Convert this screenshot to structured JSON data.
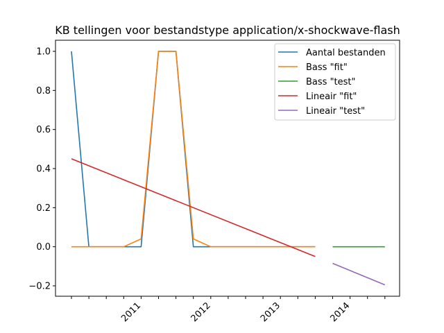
{
  "chart_data": {
    "type": "line",
    "title": "KB tellingen voor bestandstype application/x-shockwave-flash",
    "xlabel": "",
    "ylabel": "",
    "x_period_labels": [
      "",
      "",
      "",
      "",
      "2011",
      "",
      "",
      "",
      "2012",
      "",
      "",
      "",
      "2013",
      "",
      "",
      "",
      "2014",
      "",
      ""
    ],
    "ylim": [
      -0.25,
      1.05
    ],
    "yticks": [
      -0.2,
      0.0,
      0.2,
      0.4,
      0.6,
      0.8,
      1.0
    ],
    "ytick_labels": [
      "−0.2",
      "0.0",
      "0.2",
      "0.4",
      "0.6",
      "0.8",
      "1.0"
    ],
    "grid": false,
    "legend_position": "top-right",
    "series": [
      {
        "name": "Aantal bestanden",
        "color": "#1f77b4",
        "x": [
          0,
          1,
          2,
          3,
          4,
          5,
          6,
          7,
          8,
          9,
          10,
          11,
          12,
          13,
          14
        ],
        "y": [
          1,
          0,
          0,
          0,
          0,
          1,
          1,
          0,
          0,
          0,
          0,
          0,
          0,
          0,
          0
        ]
      },
      {
        "name": "Bass \"fit\"",
        "color": "#ff7f0e",
        "x": [
          0,
          1,
          2,
          3,
          4,
          5,
          6,
          7,
          8,
          9,
          10,
          11,
          12,
          13,
          14
        ],
        "y": [
          0,
          0,
          0,
          0,
          0.04,
          1,
          1,
          0.04,
          0,
          0,
          0,
          0,
          0,
          0,
          0
        ]
      },
      {
        "name": "Bass \"test\"",
        "color": "#2ca02c",
        "x": [
          15,
          16,
          17,
          18
        ],
        "y": [
          0,
          0,
          0,
          0
        ]
      },
      {
        "name": "Lineair \"fit\"",
        "color": "#d62728",
        "x": [
          0,
          14
        ],
        "y": [
          0.45,
          -0.05
        ]
      },
      {
        "name": "Lineair \"test\"",
        "color": "#9467bd",
        "x": [
          15,
          18
        ],
        "y": [
          -0.085,
          -0.195
        ]
      }
    ]
  }
}
